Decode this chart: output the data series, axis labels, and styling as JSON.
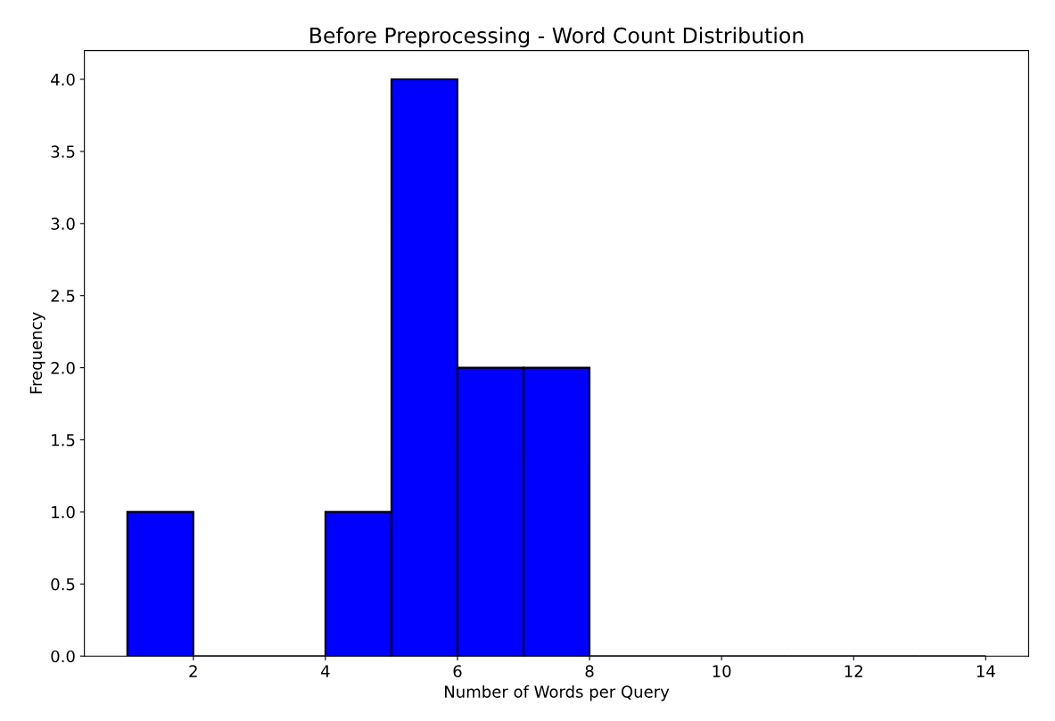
{
  "chart_data": {
    "type": "histogram",
    "title": "Before Preprocessing - Word Count Distribution",
    "xlabel": "Number of Words per Query",
    "ylabel": "Frequency",
    "bins": [
      1,
      2,
      3,
      4,
      5,
      6,
      7,
      8,
      9,
      10,
      11,
      12,
      13,
      14
    ],
    "values": [
      1,
      0,
      0,
      1,
      4,
      2,
      2,
      0,
      0,
      0,
      0,
      0,
      0
    ],
    "color": "#0000ff",
    "xlim": [
      0.35,
      14.65
    ],
    "xticks": [
      2,
      4,
      6,
      8,
      10,
      12,
      14
    ],
    "ylim": [
      0,
      4.2
    ],
    "yticks": [
      {
        "value": 0,
        "label": "0.0"
      },
      {
        "value": 0.5,
        "label": "0.5"
      },
      {
        "value": 1,
        "label": "1.0"
      },
      {
        "value": 1.5,
        "label": "1.5"
      },
      {
        "value": 2,
        "label": "2.0"
      },
      {
        "value": 2.5,
        "label": "2.5"
      },
      {
        "value": 3,
        "label": "3.0"
      },
      {
        "value": 3.5,
        "label": "3.5"
      },
      {
        "value": 4,
        "label": "4.0"
      }
    ],
    "grid": false
  }
}
